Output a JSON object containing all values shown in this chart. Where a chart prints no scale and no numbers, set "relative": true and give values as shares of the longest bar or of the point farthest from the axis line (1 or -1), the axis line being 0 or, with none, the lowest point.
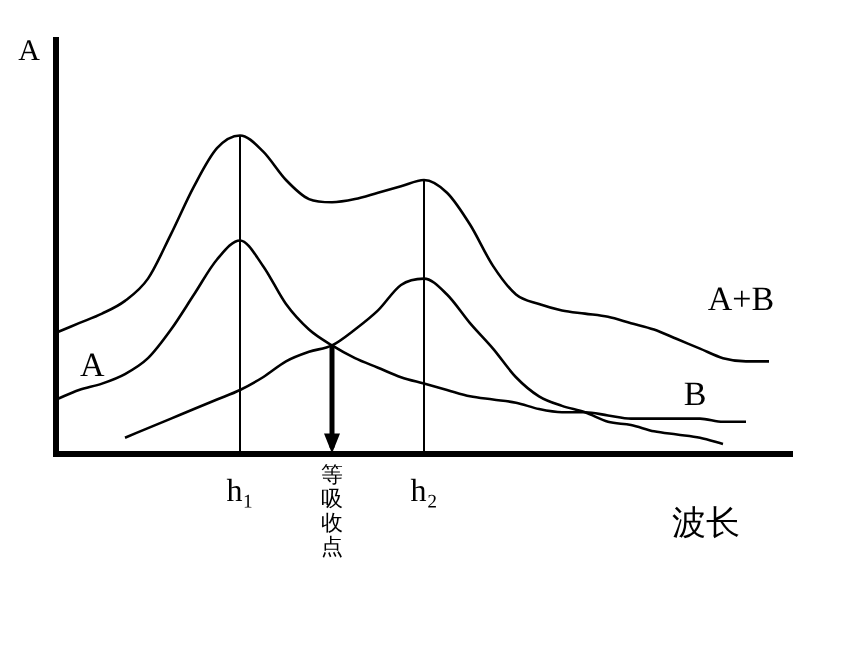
{
  "chart_data": {
    "type": "line",
    "relative": true,
    "ylabel": "A",
    "xlabel": "波长",
    "legend": false,
    "grid": false,
    "marker": "none",
    "line_style": "solid",
    "categories": [
      null,
      null,
      null,
      null,
      null,
      null,
      null,
      null,
      "h₁",
      null,
      null,
      null,
      null,
      null,
      null,
      null,
      "h₂",
      null,
      null,
      null,
      null,
      null,
      null,
      null,
      null,
      null,
      null,
      null,
      null,
      null,
      null,
      null,
      null
    ],
    "series": [
      {
        "name": "A",
        "color": "#000000",
        "values": [
          0.17,
          0.2,
          0.22,
          0.25,
          0.3,
          0.39,
          0.5,
          0.61,
          0.67,
          0.59,
          0.47,
          0.39,
          0.34,
          0.3,
          0.27,
          0.24,
          0.22,
          0.2,
          0.18,
          0.17,
          0.16,
          0.14,
          0.13,
          0.13,
          0.12,
          0.11,
          0.11,
          0.11,
          0.11,
          0.1,
          0.1,
          null,
          null
        ]
      },
      {
        "name": "B",
        "color": "#000000",
        "values": [
          null,
          null,
          null,
          0.05,
          0.08,
          0.11,
          0.14,
          0.17,
          0.2,
          0.24,
          0.29,
          0.32,
          0.34,
          0.39,
          0.45,
          0.53,
          0.55,
          0.5,
          0.41,
          0.33,
          0.24,
          0.18,
          0.15,
          0.13,
          0.1,
          0.09,
          0.07,
          0.06,
          0.05,
          0.03,
          null,
          null,
          null
        ]
      },
      {
        "name": "A+B",
        "color": "#000000",
        "values": [
          0.38,
          0.41,
          0.44,
          0.48,
          0.55,
          0.69,
          0.84,
          0.96,
          1,
          0.95,
          0.86,
          0.8,
          0.79,
          0.8,
          0.82,
          0.84,
          0.86,
          0.82,
          0.72,
          0.59,
          0.5,
          0.47,
          0.45,
          0.44,
          0.43,
          0.41,
          0.39,
          0.36,
          0.33,
          0.3,
          0.29,
          0.29,
          null
        ]
      }
    ],
    "ref_lines": [
      {
        "axis": "x",
        "value": "h₁",
        "color": "#000000"
      },
      {
        "axis": "x",
        "value": "h₂",
        "color": "#000000"
      }
    ],
    "annotations": [
      "等吸收点"
    ]
  }
}
